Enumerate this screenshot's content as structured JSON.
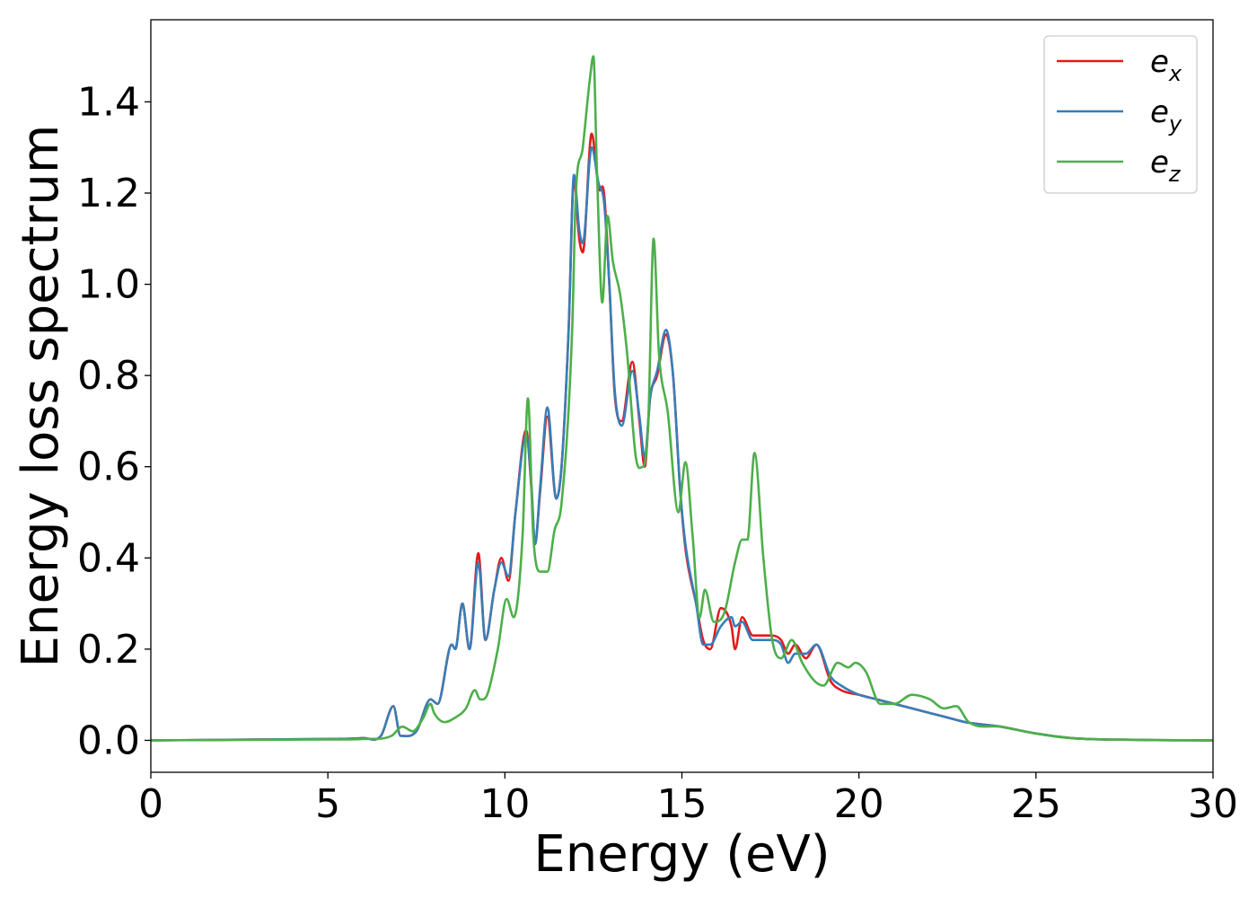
{
  "chart_data": {
    "type": "line",
    "title": "",
    "xlabel": "Energy (eV)",
    "ylabel": "Energy loss spectrum",
    "xlim": [
      0,
      30
    ],
    "ylim": [
      -0.07,
      1.58
    ],
    "xticks": [
      0,
      5,
      10,
      15,
      20,
      25,
      30
    ],
    "xtick_labels": [
      "0",
      "5",
      "10",
      "15",
      "20",
      "25",
      "30"
    ],
    "yticks": [
      0.0,
      0.2,
      0.4,
      0.6,
      0.8,
      1.0,
      1.2,
      1.4
    ],
    "ytick_labels": [
      "0.0",
      "0.2",
      "0.4",
      "0.6",
      "0.8",
      "1.0",
      "1.2",
      "1.4"
    ],
    "grid": false,
    "legend_position": "top-right",
    "series": [
      {
        "name": "e_x",
        "label_base": "e",
        "label_sub": "x",
        "color": "#e41a1c",
        "points": [
          [
            0,
            0
          ],
          [
            5,
            0.003
          ],
          [
            6,
            0.005
          ],
          [
            6.5,
            0.01
          ],
          [
            6.85,
            0.075
          ],
          [
            7.05,
            0.01
          ],
          [
            7.5,
            0.02
          ],
          [
            7.9,
            0.09
          ],
          [
            8.1,
            0.08
          ],
          [
            8.5,
            0.21
          ],
          [
            8.6,
            0.2
          ],
          [
            8.8,
            0.3
          ],
          [
            9.0,
            0.2
          ],
          [
            9.25,
            0.41
          ],
          [
            9.45,
            0.22
          ],
          [
            9.7,
            0.33
          ],
          [
            9.9,
            0.4
          ],
          [
            10.1,
            0.35
          ],
          [
            10.3,
            0.5
          ],
          [
            10.6,
            0.68
          ],
          [
            10.75,
            0.55
          ],
          [
            10.85,
            0.43
          ],
          [
            11.0,
            0.55
          ],
          [
            11.2,
            0.71
          ],
          [
            11.45,
            0.53
          ],
          [
            11.6,
            0.6
          ],
          [
            11.8,
            0.9
          ],
          [
            11.95,
            1.23
          ],
          [
            12.1,
            1.1
          ],
          [
            12.2,
            1.07
          ],
          [
            12.45,
            1.33
          ],
          [
            12.65,
            1.21
          ],
          [
            12.8,
            1.2
          ],
          [
            12.95,
            1.0
          ],
          [
            13.1,
            0.76
          ],
          [
            13.3,
            0.7
          ],
          [
            13.6,
            0.83
          ],
          [
            13.8,
            0.7
          ],
          [
            13.95,
            0.6
          ],
          [
            14.1,
            0.75
          ],
          [
            14.3,
            0.8
          ],
          [
            14.55,
            0.89
          ],
          [
            14.75,
            0.8
          ],
          [
            14.95,
            0.55
          ],
          [
            15.1,
            0.42
          ],
          [
            15.4,
            0.3
          ],
          [
            15.6,
            0.22
          ],
          [
            15.8,
            0.2
          ],
          [
            16.1,
            0.29
          ],
          [
            16.4,
            0.25
          ],
          [
            16.5,
            0.2
          ],
          [
            16.7,
            0.27
          ],
          [
            17.0,
            0.23
          ],
          [
            17.5,
            0.23
          ],
          [
            17.8,
            0.22
          ],
          [
            18.0,
            0.19
          ],
          [
            18.2,
            0.21
          ],
          [
            18.5,
            0.18
          ],
          [
            18.8,
            0.21
          ],
          [
            19.2,
            0.13
          ],
          [
            19.5,
            0.11
          ],
          [
            20.0,
            0.1
          ],
          [
            20.5,
            0.09
          ],
          [
            21.0,
            0.08
          ],
          [
            21.5,
            0.07
          ],
          [
            22.0,
            0.06
          ],
          [
            22.5,
            0.05
          ],
          [
            23.0,
            0.04
          ],
          [
            24.0,
            0.03
          ],
          [
            25.0,
            0.015
          ],
          [
            26.0,
            0.005
          ],
          [
            28.0,
            0.001
          ],
          [
            30,
            0
          ]
        ]
      },
      {
        "name": "e_y",
        "label_base": "e",
        "label_sub": "y",
        "color": "#377eb8",
        "points": [
          [
            0,
            0
          ],
          [
            5,
            0.003
          ],
          [
            6,
            0.005
          ],
          [
            6.5,
            0.01
          ],
          [
            6.85,
            0.075
          ],
          [
            7.05,
            0.01
          ],
          [
            7.5,
            0.02
          ],
          [
            7.9,
            0.09
          ],
          [
            8.1,
            0.08
          ],
          [
            8.5,
            0.21
          ],
          [
            8.6,
            0.2
          ],
          [
            8.8,
            0.3
          ],
          [
            9.0,
            0.2
          ],
          [
            9.25,
            0.39
          ],
          [
            9.45,
            0.22
          ],
          [
            9.7,
            0.33
          ],
          [
            9.9,
            0.39
          ],
          [
            10.1,
            0.36
          ],
          [
            10.3,
            0.5
          ],
          [
            10.6,
            0.67
          ],
          [
            10.75,
            0.56
          ],
          [
            10.85,
            0.43
          ],
          [
            11.0,
            0.56
          ],
          [
            11.2,
            0.73
          ],
          [
            11.45,
            0.53
          ],
          [
            11.6,
            0.6
          ],
          [
            11.8,
            0.9
          ],
          [
            11.95,
            1.24
          ],
          [
            12.1,
            1.12
          ],
          [
            12.2,
            1.09
          ],
          [
            12.45,
            1.3
          ],
          [
            12.65,
            1.22
          ],
          [
            12.8,
            1.18
          ],
          [
            12.95,
            1.0
          ],
          [
            13.1,
            0.77
          ],
          [
            13.3,
            0.69
          ],
          [
            13.6,
            0.81
          ],
          [
            13.8,
            0.71
          ],
          [
            13.95,
            0.62
          ],
          [
            14.1,
            0.75
          ],
          [
            14.3,
            0.81
          ],
          [
            14.55,
            0.9
          ],
          [
            14.75,
            0.8
          ],
          [
            14.95,
            0.55
          ],
          [
            15.1,
            0.43
          ],
          [
            15.4,
            0.3
          ],
          [
            15.6,
            0.21
          ],
          [
            15.8,
            0.21
          ],
          [
            16.1,
            0.25
          ],
          [
            16.4,
            0.27
          ],
          [
            16.5,
            0.25
          ],
          [
            16.7,
            0.26
          ],
          [
            17.0,
            0.22
          ],
          [
            17.5,
            0.22
          ],
          [
            17.8,
            0.21
          ],
          [
            18.0,
            0.17
          ],
          [
            18.2,
            0.19
          ],
          [
            18.5,
            0.19
          ],
          [
            18.8,
            0.21
          ],
          [
            19.2,
            0.14
          ],
          [
            19.5,
            0.12
          ],
          [
            20.0,
            0.1
          ],
          [
            20.5,
            0.09
          ],
          [
            21.0,
            0.08
          ],
          [
            21.5,
            0.07
          ],
          [
            22.0,
            0.06
          ],
          [
            22.5,
            0.05
          ],
          [
            23.0,
            0.04
          ],
          [
            24.0,
            0.03
          ],
          [
            25.0,
            0.015
          ],
          [
            26.0,
            0.005
          ],
          [
            28.0,
            0.001
          ],
          [
            30,
            0
          ]
        ]
      },
      {
        "name": "e_z",
        "label_base": "e",
        "label_sub": "z",
        "color": "#4daf4a",
        "points": [
          [
            0,
            0
          ],
          [
            5,
            0.002
          ],
          [
            6,
            0.003
          ],
          [
            6.8,
            0.01
          ],
          [
            7.1,
            0.03
          ],
          [
            7.4,
            0.02
          ],
          [
            7.7,
            0.05
          ],
          [
            7.9,
            0.08
          ],
          [
            8.0,
            0.06
          ],
          [
            8.3,
            0.04
          ],
          [
            8.6,
            0.05
          ],
          [
            8.9,
            0.07
          ],
          [
            9.15,
            0.11
          ],
          [
            9.3,
            0.09
          ],
          [
            9.5,
            0.1
          ],
          [
            9.8,
            0.2
          ],
          [
            10.05,
            0.31
          ],
          [
            10.25,
            0.27
          ],
          [
            10.5,
            0.45
          ],
          [
            10.65,
            0.75
          ],
          [
            10.8,
            0.45
          ],
          [
            11.0,
            0.37
          ],
          [
            11.2,
            0.37
          ],
          [
            11.4,
            0.46
          ],
          [
            11.6,
            0.52
          ],
          [
            11.9,
            0.9
          ],
          [
            12.0,
            1.19
          ],
          [
            12.2,
            1.3
          ],
          [
            12.4,
            1.45
          ],
          [
            12.5,
            1.5
          ],
          [
            12.6,
            1.25
          ],
          [
            12.75,
            0.96
          ],
          [
            12.9,
            1.15
          ],
          [
            13.05,
            1.05
          ],
          [
            13.25,
            0.98
          ],
          [
            13.45,
            0.85
          ],
          [
            13.7,
            0.62
          ],
          [
            13.9,
            0.6
          ],
          [
            14.05,
            0.7
          ],
          [
            14.2,
            1.1
          ],
          [
            14.35,
            0.85
          ],
          [
            14.6,
            0.72
          ],
          [
            14.9,
            0.5
          ],
          [
            15.1,
            0.61
          ],
          [
            15.3,
            0.45
          ],
          [
            15.5,
            0.27
          ],
          [
            15.65,
            0.33
          ],
          [
            15.9,
            0.26
          ],
          [
            16.2,
            0.28
          ],
          [
            16.5,
            0.39
          ],
          [
            16.7,
            0.44
          ],
          [
            16.85,
            0.44
          ],
          [
            17.05,
            0.63
          ],
          [
            17.3,
            0.4
          ],
          [
            17.55,
            0.22
          ],
          [
            17.8,
            0.18
          ],
          [
            18.1,
            0.22
          ],
          [
            18.4,
            0.17
          ],
          [
            18.75,
            0.13
          ],
          [
            19.0,
            0.12
          ],
          [
            19.4,
            0.17
          ],
          [
            19.7,
            0.16
          ],
          [
            19.9,
            0.17
          ],
          [
            20.2,
            0.15
          ],
          [
            20.6,
            0.08
          ],
          [
            21.0,
            0.08
          ],
          [
            21.5,
            0.1
          ],
          [
            22.0,
            0.09
          ],
          [
            22.4,
            0.07
          ],
          [
            22.75,
            0.075
          ],
          [
            23.1,
            0.04
          ],
          [
            24.0,
            0.03
          ],
          [
            25.0,
            0.015
          ],
          [
            26.0,
            0.005
          ],
          [
            28.0,
            0.001
          ],
          [
            30,
            0
          ]
        ]
      }
    ]
  }
}
